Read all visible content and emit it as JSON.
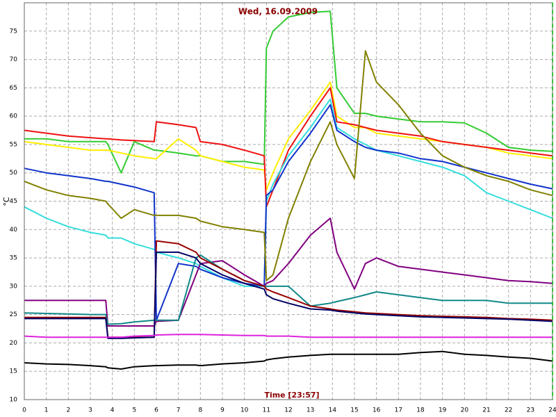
{
  "chart_data": {
    "type": "line",
    "title": "Wed, 16.09.2009",
    "x_label": "Time [23:57]",
    "y_label": "°C",
    "xlim": [
      0,
      24
    ],
    "ylim": [
      10,
      80
    ],
    "grid": true,
    "xticks": [
      0,
      1,
      2,
      3,
      4,
      5,
      6,
      7,
      8,
      9,
      10,
      11,
      12,
      13,
      14,
      15,
      16,
      17,
      18,
      19,
      20,
      21,
      22,
      23,
      24
    ],
    "yticks": [
      10,
      15,
      20,
      25,
      30,
      35,
      40,
      45,
      50,
      55,
      60,
      65,
      70,
      75
    ],
    "x": [
      0,
      1,
      2,
      3,
      3.7,
      3.8,
      4.4,
      5,
      5.9,
      6,
      7,
      7.8,
      8,
      9,
      10,
      10.9,
      11,
      11.3,
      12,
      13,
      13.9,
      14.2,
      15,
      15.5,
      16,
      17,
      18,
      19,
      20,
      21,
      22,
      23,
      24
    ],
    "series": [
      {
        "color": "#33cc33",
        "values": [
          56,
          56,
          55.5,
          55.5,
          55.5,
          55,
          50,
          55.5,
          54,
          54,
          53.5,
          53,
          53,
          52,
          52,
          51.5,
          72,
          75,
          77.5,
          78.3,
          78.5,
          65,
          60.5,
          60.5,
          60,
          59.5,
          59,
          59,
          58.8,
          57,
          54.5,
          54,
          53.8
        ]
      },
      {
        "color": "#ffee00",
        "values": [
          55.5,
          55,
          54.5,
          54,
          54,
          54,
          53.5,
          53,
          52.5,
          52.5,
          56,
          54,
          53,
          52,
          51,
          50.5,
          47,
          50,
          56,
          61,
          66,
          60,
          58,
          58,
          57,
          56.5,
          56,
          55.5,
          55,
          54.5,
          53.5,
          53,
          52.5
        ]
      },
      {
        "color": "#ee1111",
        "values": [
          57.5,
          57,
          56.5,
          56.2,
          56,
          56,
          55.8,
          55.7,
          55.5,
          59,
          58.5,
          58,
          55.5,
          55,
          54,
          53,
          44,
          47,
          54,
          60,
          65,
          59,
          58.5,
          58,
          57.5,
          57,
          56.5,
          55.5,
          55,
          54.5,
          54,
          53.5,
          53
        ]
      },
      {
        "color": "#33dddd",
        "values": [
          44,
          42,
          40.5,
          39.5,
          39,
          38.5,
          38.5,
          37.5,
          36.5,
          36,
          35,
          34,
          33.5,
          31.5,
          30,
          30,
          45,
          48,
          53,
          58,
          63,
          58,
          56,
          55,
          54,
          53,
          52,
          51,
          49.5,
          46.5,
          45,
          43.5,
          42
        ]
      },
      {
        "color": "#1133cc",
        "values": [
          50.8,
          50,
          49.5,
          49,
          48.5,
          48.5,
          48,
          47.5,
          46.5,
          24,
          34,
          33.5,
          33,
          31.5,
          30.5,
          30,
          46,
          47,
          52,
          57,
          62,
          57.5,
          55.5,
          54.5,
          54,
          53.5,
          52.5,
          52,
          51,
          50,
          49,
          48,
          47.2
        ]
      },
      {
        "color": "#808000",
        "values": [
          48.5,
          47,
          46,
          45.5,
          45,
          44.5,
          42,
          43.5,
          42.5,
          42.5,
          42.5,
          42,
          41.5,
          40.5,
          40,
          39.5,
          31,
          32,
          42,
          52,
          59,
          55,
          49,
          71.5,
          66,
          62,
          57,
          53,
          51,
          49.5,
          48.5,
          47,
          46
        ]
      },
      {
        "color": "#800080",
        "values": [
          27.5,
          27.5,
          27.5,
          27.5,
          27.5,
          23,
          23,
          23,
          23,
          23.8,
          24,
          32,
          34,
          34.5,
          32,
          30,
          30.5,
          31,
          34,
          39,
          42,
          36,
          29.5,
          34,
          35,
          33.5,
          33,
          32.5,
          32,
          31.5,
          31,
          30.8,
          30.5
        ]
      },
      {
        "color": "#118888",
        "values": [
          25.3,
          25.2,
          25.1,
          25,
          25,
          23.3,
          23.4,
          23.7,
          24,
          24,
          24,
          35,
          35.5,
          33,
          31,
          30,
          30,
          30,
          30,
          26.5,
          27,
          27.3,
          28,
          28.5,
          29,
          28.5,
          28,
          27.5,
          27.5,
          27.5,
          27,
          27,
          27
        ]
      },
      {
        "color": "#990000",
        "values": [
          24.5,
          24.5,
          24.5,
          24.5,
          24.5,
          21,
          21,
          21,
          21,
          38,
          37.5,
          36,
          35,
          33,
          31,
          30,
          29.5,
          29,
          28,
          26.5,
          26,
          25.8,
          25.5,
          25.3,
          25.2,
          25,
          24.8,
          24.7,
          24.6,
          24.5,
          24.3,
          24.2,
          24
        ]
      },
      {
        "color": "#000066",
        "values": [
          24.3,
          24.3,
          24.3,
          24.3,
          24.3,
          20.8,
          20.8,
          20.9,
          21,
          36,
          36,
          35,
          34,
          32,
          30.5,
          29.5,
          28.5,
          27.8,
          27,
          26,
          25.8,
          25.6,
          25.3,
          25.1,
          25,
          24.8,
          24.6,
          24.5,
          24.4,
          24.3,
          24.2,
          24,
          23.8
        ]
      },
      {
        "color": "#dd22dd",
        "values": [
          21.2,
          21,
          21,
          21,
          21,
          21,
          21,
          21.2,
          21.3,
          21.4,
          21.5,
          21.5,
          21.5,
          21.4,
          21.3,
          21.3,
          21.2,
          21.2,
          21.2,
          21,
          21,
          21,
          21,
          21,
          21,
          21,
          21,
          21,
          21,
          21,
          21,
          21,
          21
        ]
      },
      {
        "color": "#000000",
        "values": [
          16.5,
          16.3,
          16.2,
          16,
          15.8,
          15.6,
          15.4,
          15.8,
          16,
          16,
          16.1,
          16.1,
          16,
          16.3,
          16.5,
          16.8,
          17,
          17.2,
          17.5,
          17.8,
          18,
          18,
          18,
          18,
          18,
          18,
          18.3,
          18.5,
          18,
          17.8,
          17.5,
          17.3,
          16.8
        ]
      }
    ]
  }
}
